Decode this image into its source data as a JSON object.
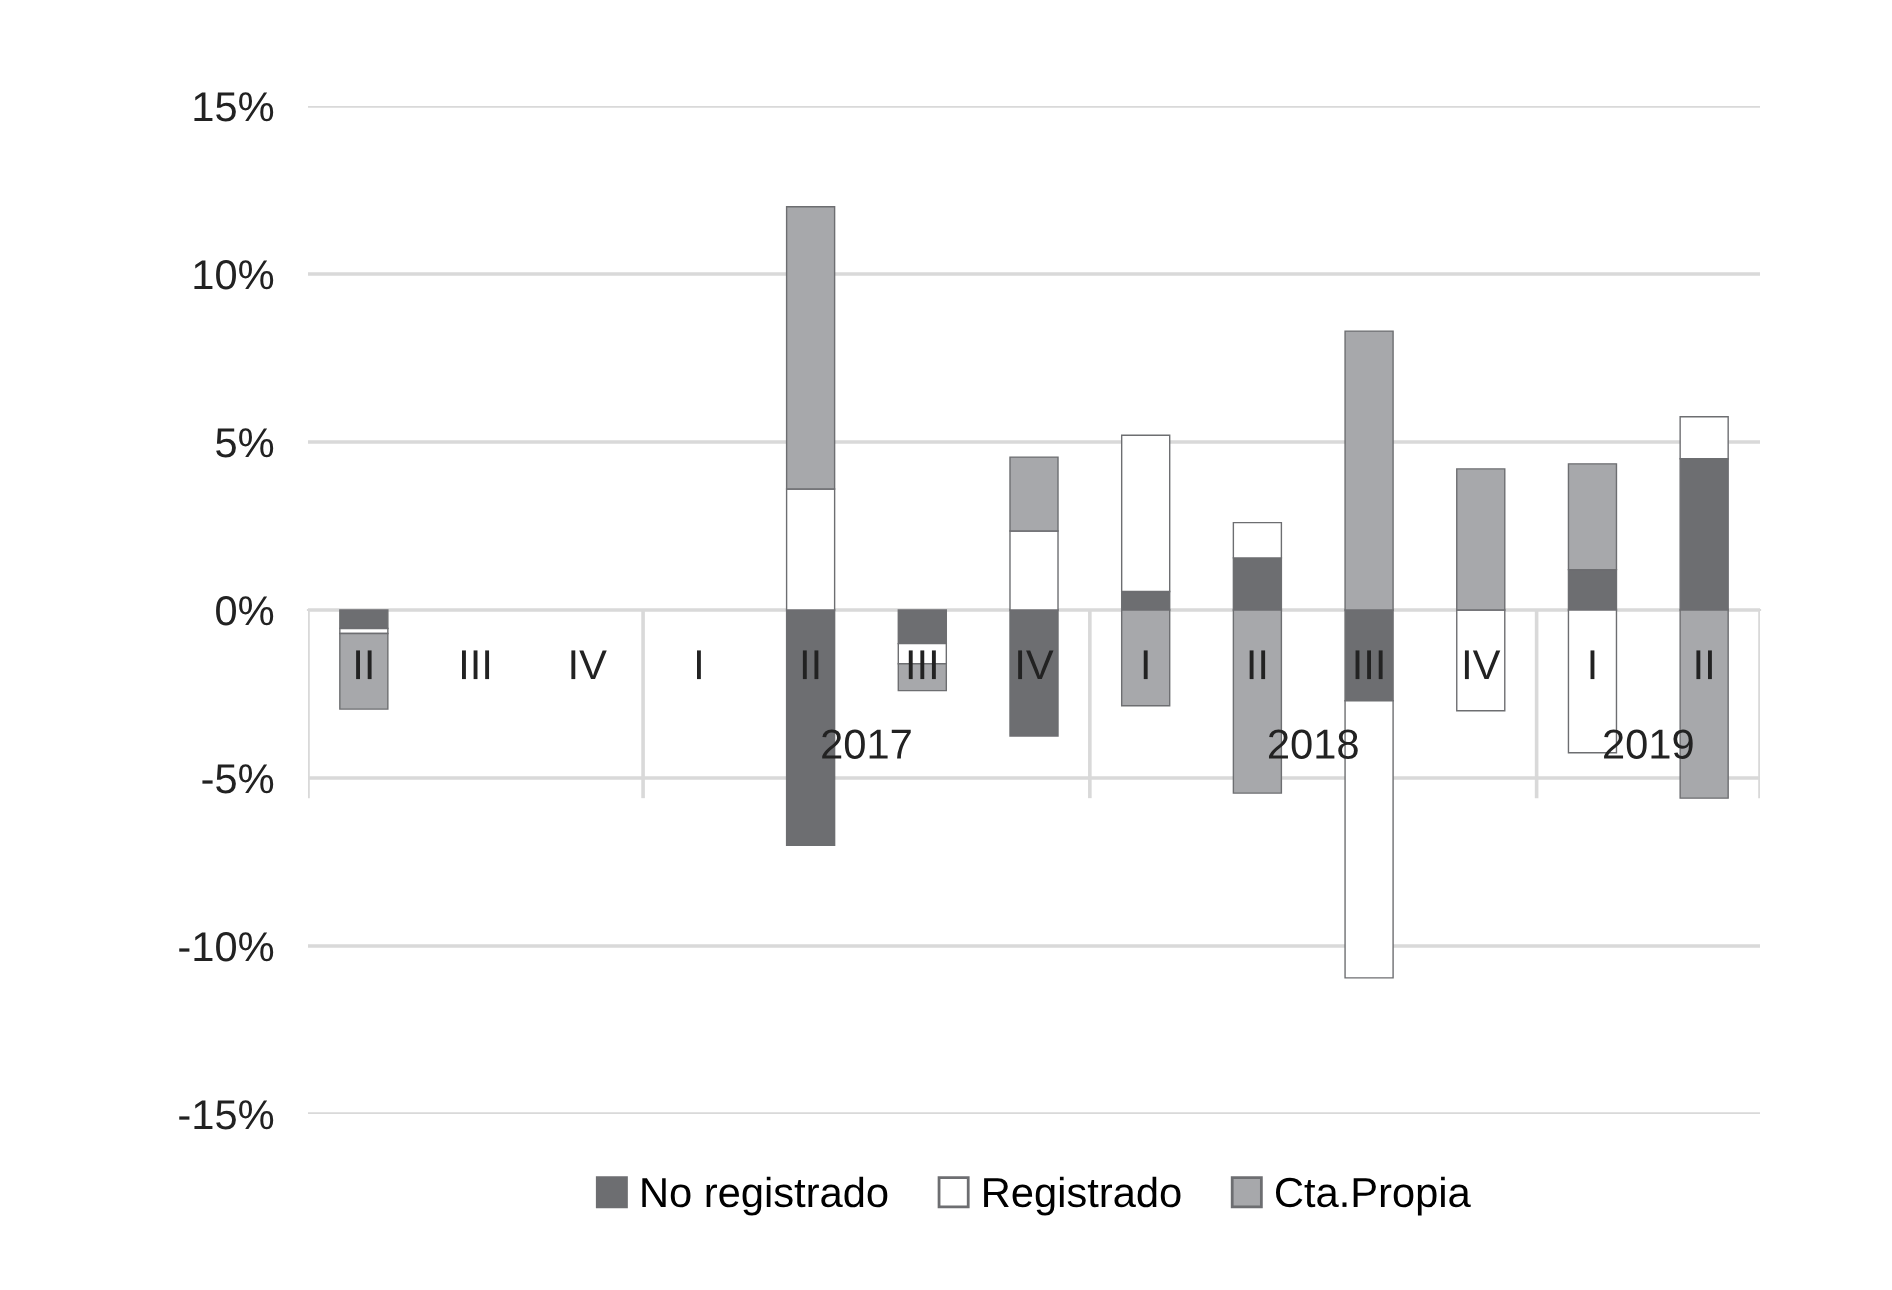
{
  "chart_data": {
    "type": "bar",
    "stacked": true,
    "categories": [
      "II",
      "III",
      "IV",
      "I",
      "II",
      "III",
      "IV",
      "I",
      "II",
      "III",
      "IV",
      "I",
      "II"
    ],
    "series": [
      {
        "name": "No registrado",
        "color": "#6d6e71",
        "values": [
          -0.55,
          null,
          null,
          null,
          -7.0,
          -1.0,
          -3.75,
          0.55,
          1.55,
          -2.7,
          null,
          1.2,
          4.5
        ]
      },
      {
        "name": "Registrado",
        "color": "#ffffff",
        "values": [
          -0.15,
          null,
          null,
          null,
          3.6,
          -0.6,
          2.35,
          4.65,
          1.05,
          -8.25,
          -3.0,
          -4.25,
          1.25
        ]
      },
      {
        "name": "Cta.Propia",
        "color": "#a7a8ab",
        "values": [
          -2.25,
          null,
          null,
          null,
          8.4,
          -0.8,
          2.2,
          -2.85,
          -5.45,
          8.3,
          4.2,
          3.15,
          -5.6
        ]
      }
    ],
    "ylim": [
      -15,
      15
    ],
    "yticks": [
      {
        "value": -15,
        "label": "-15%"
      },
      {
        "value": -10,
        "label": "-10%"
      },
      {
        "value": -5,
        "label": "-5%"
      },
      {
        "value": 0,
        "label": "0%"
      },
      {
        "value": 5,
        "label": "5%"
      },
      {
        "value": 10,
        "label": "10%"
      },
      {
        "value": 15,
        "label": "15%"
      }
    ],
    "annotations": [
      "2017",
      "2018",
      "2019"
    ],
    "grid": "y",
    "legend": "bottom"
  }
}
